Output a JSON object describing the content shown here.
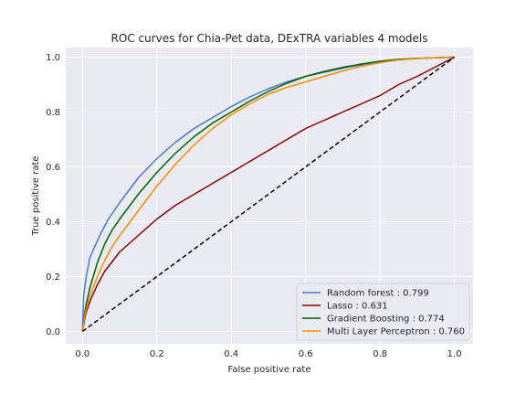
{
  "chart_data": {
    "type": "line",
    "title": "ROC curves for Chia-Pet data, DExTRA variables 4 models",
    "xlabel": "False positive rate",
    "ylabel": "True positive rate",
    "xlim": [
      -0.045,
      1.05
    ],
    "ylim": [
      -0.045,
      1.035
    ],
    "xticks": [
      "0.0",
      "0.2",
      "0.4",
      "0.6",
      "0.8",
      "1.0"
    ],
    "yticks": [
      "0.0",
      "0.2",
      "0.4",
      "0.6",
      "0.8",
      "1.0"
    ],
    "grid": true,
    "legend_position": "lower-right",
    "background": "#eaeaf2",
    "series": [
      {
        "name": "Random forest : 0.799",
        "color": "#4878d0",
        "x": [
          0,
          0.003,
          0.01,
          0.02,
          0.03,
          0.05,
          0.07,
          0.1,
          0.15,
          0.2,
          0.25,
          0.3,
          0.35,
          0.4,
          0.45,
          0.5,
          0.55,
          0.6,
          0.65,
          0.7,
          0.75,
          0.8,
          0.85,
          0.9,
          0.95,
          1.0
        ],
        "y": [
          0,
          0.13,
          0.2,
          0.27,
          0.3,
          0.36,
          0.41,
          0.47,
          0.56,
          0.63,
          0.69,
          0.74,
          0.78,
          0.82,
          0.855,
          0.885,
          0.91,
          0.93,
          0.945,
          0.96,
          0.972,
          0.982,
          0.99,
          0.995,
          0.998,
          1.0
        ]
      },
      {
        "name": "Lasso : 0.631",
        "color": "#8b0000",
        "x": [
          0,
          0.005,
          0.01,
          0.02,
          0.04,
          0.06,
          0.1,
          0.15,
          0.2,
          0.25,
          0.3,
          0.35,
          0.4,
          0.45,
          0.5,
          0.55,
          0.6,
          0.65,
          0.7,
          0.75,
          0.8,
          0.85,
          0.9,
          0.95,
          1.0
        ],
        "y": [
          0,
          0.04,
          0.07,
          0.11,
          0.17,
          0.22,
          0.29,
          0.35,
          0.41,
          0.46,
          0.5,
          0.54,
          0.58,
          0.62,
          0.66,
          0.7,
          0.74,
          0.77,
          0.8,
          0.83,
          0.86,
          0.9,
          0.93,
          0.965,
          1.0
        ]
      },
      {
        "name": "Gradient Boosting : 0.774",
        "color": "#006400",
        "x": [
          0,
          0.005,
          0.01,
          0.02,
          0.04,
          0.06,
          0.08,
          0.1,
          0.15,
          0.2,
          0.25,
          0.3,
          0.35,
          0.4,
          0.45,
          0.5,
          0.55,
          0.6,
          0.65,
          0.7,
          0.75,
          0.8,
          0.85,
          0.9,
          0.95,
          1.0
        ],
        "y": [
          0,
          0.06,
          0.1,
          0.16,
          0.25,
          0.32,
          0.37,
          0.41,
          0.5,
          0.58,
          0.65,
          0.71,
          0.76,
          0.8,
          0.84,
          0.875,
          0.905,
          0.93,
          0.948,
          0.963,
          0.975,
          0.985,
          0.992,
          0.996,
          0.998,
          1.0
        ]
      },
      {
        "name": "Multi Layer Perceptron : 0.760",
        "color": "#ff8c00",
        "x": [
          0,
          0.005,
          0.01,
          0.02,
          0.04,
          0.06,
          0.08,
          0.1,
          0.15,
          0.2,
          0.25,
          0.3,
          0.35,
          0.4,
          0.45,
          0.5,
          0.55,
          0.6,
          0.65,
          0.7,
          0.75,
          0.8,
          0.85,
          0.9,
          0.95,
          1.0
        ],
        "y": [
          0,
          0.05,
          0.08,
          0.13,
          0.2,
          0.26,
          0.31,
          0.35,
          0.44,
          0.53,
          0.61,
          0.68,
          0.74,
          0.79,
          0.83,
          0.865,
          0.89,
          0.91,
          0.93,
          0.95,
          0.967,
          0.98,
          0.99,
          0.995,
          0.998,
          1.0
        ]
      },
      {
        "name": "",
        "color": "#000000",
        "dashed": true,
        "x": [
          0,
          1
        ],
        "y": [
          0,
          1
        ]
      }
    ]
  }
}
